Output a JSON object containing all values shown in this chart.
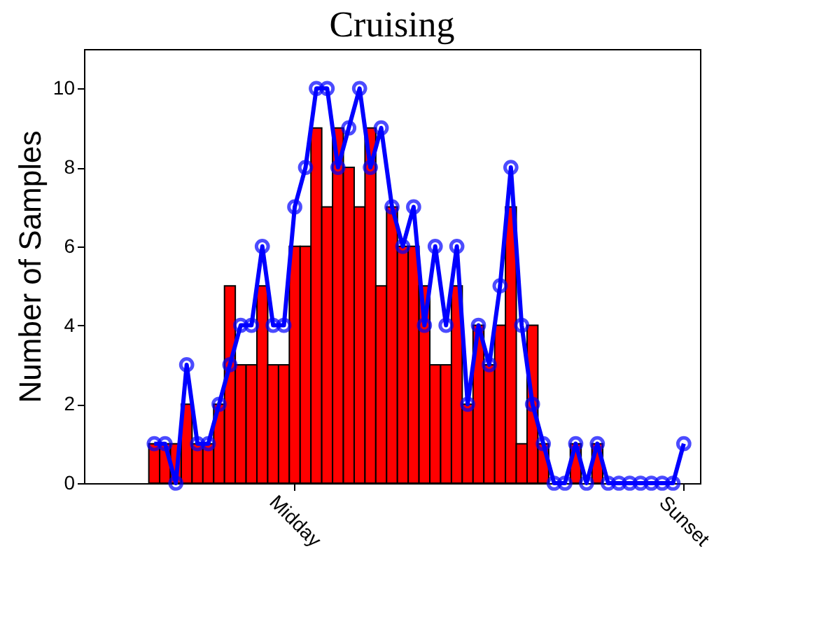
{
  "chart_data": {
    "type": "bar",
    "title": "Cruising",
    "ylabel": "Number of Samples",
    "categories": [
      null,
      null,
      null,
      null,
      null,
      null,
      null,
      null,
      null,
      null,
      null,
      null,
      null,
      null,
      null,
      null,
      null,
      null,
      null,
      "Midday",
      null,
      null,
      null,
      null,
      null,
      null,
      null,
      null,
      null,
      null,
      null,
      null,
      null,
      null,
      null,
      null,
      null,
      null,
      null,
      null,
      null,
      null,
      null,
      null,
      null,
      null,
      null,
      null,
      null,
      null,
      null,
      null,
      null,
      null,
      null,
      "Sunset",
      null
    ],
    "series": [
      {
        "color": "#ff0000",
        "values": [
          null,
          null,
          null,
          null,
          null,
          null,
          1,
          1,
          1,
          2,
          1,
          1,
          2,
          5,
          3,
          3,
          5,
          3,
          3,
          6,
          6,
          9,
          7,
          9,
          8,
          7,
          9,
          5,
          7,
          6,
          6,
          5,
          3,
          3,
          5,
          2,
          4,
          3,
          4,
          7,
          1,
          4,
          1,
          0,
          0,
          1,
          0,
          1,
          0,
          0,
          0,
          0,
          0,
          0,
          0,
          0,
          null
        ]
      },
      {
        "type": "line",
        "color": "#0000ff",
        "marker": "circle",
        "values": [
          null,
          null,
          null,
          null,
          null,
          null,
          1,
          1,
          0,
          3,
          1,
          1,
          2,
          3,
          4,
          4,
          6,
          4,
          4,
          7,
          8,
          10,
          10,
          8,
          9,
          10,
          8,
          9,
          7,
          6,
          7,
          4,
          6,
          4,
          6,
          2,
          4,
          3,
          5,
          8,
          4,
          2,
          1,
          0,
          0,
          1,
          0,
          1,
          0,
          0,
          0,
          0,
          0,
          0,
          0,
          1,
          null
        ]
      }
    ],
    "ylim": [
      0,
      11
    ],
    "yticks": [
      0,
      2,
      4,
      6,
      8,
      10
    ],
    "grid": false,
    "legend": false
  }
}
